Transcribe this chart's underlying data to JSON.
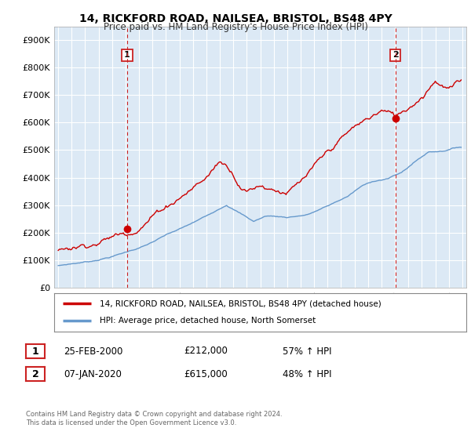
{
  "title1": "14, RICKFORD ROAD, NAILSEA, BRISTOL, BS48 4PY",
  "title2": "Price paid vs. HM Land Registry's House Price Index (HPI)",
  "ylabel_ticks": [
    "£0",
    "£100K",
    "£200K",
    "£300K",
    "£400K",
    "£500K",
    "£600K",
    "£700K",
    "£800K",
    "£900K"
  ],
  "ytick_values": [
    0,
    100000,
    200000,
    300000,
    400000,
    500000,
    600000,
    700000,
    800000,
    900000
  ],
  "ylim": [
    0,
    950000
  ],
  "sale1_x": 2000.12,
  "sale1_y": 212000,
  "sale2_x": 2020.03,
  "sale2_y": 615000,
  "legend_line1": "14, RICKFORD ROAD, NAILSEA, BRISTOL, BS48 4PY (detached house)",
  "legend_line2": "HPI: Average price, detached house, North Somerset",
  "ann1_num": "1",
  "ann1_date": "25-FEB-2000",
  "ann1_price": "£212,000",
  "ann1_hpi": "57% ↑ HPI",
  "ann2_num": "2",
  "ann2_date": "07-JAN-2020",
  "ann2_price": "£615,000",
  "ann2_hpi": "48% ↑ HPI",
  "footer": "Contains HM Land Registry data © Crown copyright and database right 2024.\nThis data is licensed under the Open Government Licence v3.0.",
  "line_color_red": "#cc0000",
  "line_color_blue": "#6699cc",
  "vline_color": "#cc2222",
  "bg_chart": "#dce9f5",
  "background_color": "#ffffff",
  "xlim_left": 1994.7,
  "xlim_right": 2025.3
}
